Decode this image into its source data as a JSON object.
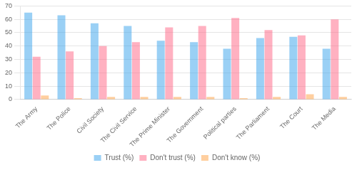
{
  "chart_data": {
    "type": "bar",
    "categories": [
      "The Army",
      "The Police",
      "Civil Society",
      "The Civil Service",
      "The Prime Minister",
      "The Government",
      "Political parties",
      "The Parliament",
      "The Court",
      "The Media"
    ],
    "series": [
      {
        "name": "Trust (%)",
        "values": [
          65,
          63,
          57,
          55,
          44,
          43,
          38,
          46,
          47,
          38
        ]
      },
      {
        "name": "Don't trust (%)",
        "values": [
          32,
          36,
          40,
          43,
          54,
          55,
          61,
          52,
          48,
          60
        ]
      },
      {
        "name": "Don't know (%)",
        "values": [
          3,
          1,
          2,
          2,
          2,
          2,
          1,
          2,
          4,
          2
        ]
      }
    ],
    "ylim": [
      0,
      70
    ],
    "yticks": [
      0,
      10,
      20,
      30,
      40,
      50,
      60,
      70
    ],
    "grid": true,
    "legend": "bottom"
  }
}
